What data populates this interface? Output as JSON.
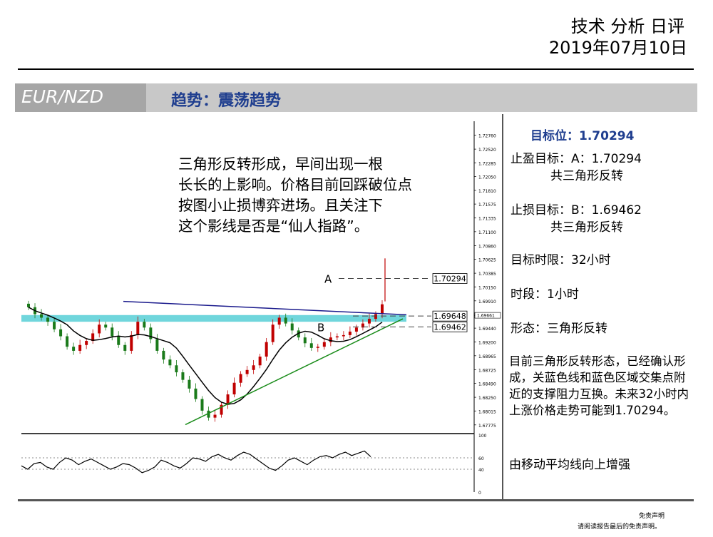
{
  "header": {
    "title": "技术 分析 日评",
    "date": "2019年07月10日"
  },
  "banner": {
    "pair": "EUR/NZD",
    "trend": "趋势：震荡趋势"
  },
  "annotation_text": [
    "三角形反转形成，早间出现一根",
    "长长的上影响。价格目前回踩破位点",
    "按图小止损博弈进场。且关注下",
    "这个影线是否是“仙人指路”。"
  ],
  "right_panel": {
    "target": "目标位：1.70294",
    "take_profit": "止盈目标：A：1.70294",
    "take_profit_note": "共三角形反转",
    "stop_loss": "止损目标：B：1.69462",
    "stop_loss_note": "共三角形反转",
    "time_limit": "目标时限：32小时",
    "timeframe": "时段：1小时",
    "pattern": "形态：三角形反转",
    "description": "目前三角形反转形态，已经确认形成，关蓝色线和蓝色区域交集点附近的支撑阻力互换。未来32小时内上涨价格走势可能到1.70294。",
    "ma_note": "由移动平均线向上增强"
  },
  "disclaimer": {
    "line1": "免责声明",
    "line2": "请阅读报告最后的免责声明。"
  },
  "colors": {
    "up_candle": "#c00000",
    "down_candle": "#1a7a1a",
    "trendline_upper": "#1a1a8c",
    "trendline_lower": "#1a8c1a",
    "zone": "#40c8d0",
    "ma": "#000000"
  },
  "chart_data": {
    "type": "candlestick",
    "ylim": [
      1.6765,
      1.73
    ],
    "price_ticks": [
      "1.72760",
      "1.72520",
      "1.72285",
      "1.72050",
      "1.71810",
      "1.71575",
      "1.71335",
      "1.71100",
      "1.70860",
      "1.70625",
      "1.70385",
      "1.70150",
      "1.69910",
      "1.69661",
      "1.69440",
      "1.69200",
      "1.68965",
      "1.68725",
      "1.68490",
      "1.68250",
      "1.68015",
      "1.67775"
    ],
    "current_price": "1.69661",
    "levels": [
      {
        "label": "A",
        "value": "1.70294"
      },
      {
        "label": "",
        "value": "1.69648"
      },
      {
        "label": "B",
        "value": "1.69462"
      }
    ],
    "close_path": [
      1.698,
      1.6968,
      1.6962,
      1.6955,
      1.6942,
      1.693,
      1.6912,
      1.6905,
      1.6915,
      1.6922,
      1.6935,
      1.695,
      1.6945,
      1.693,
      1.6915,
      1.6905,
      1.6932,
      1.6955,
      1.6945,
      1.6925,
      1.6905,
      1.689,
      1.688,
      1.6868,
      1.6855,
      1.684,
      1.6822,
      1.6802,
      1.679,
      1.6795,
      1.6812,
      1.683,
      1.685,
      1.6865,
      1.6872,
      1.688,
      1.6895,
      1.692,
      1.695,
      1.6962,
      1.6952,
      1.694,
      1.6928,
      1.6918,
      1.691,
      1.6912,
      1.692,
      1.6928,
      1.693,
      1.6932,
      1.6938,
      1.6945,
      1.6952,
      1.696,
      1.6968,
      1.6985
    ],
    "oscillator": {
      "ylim": [
        0,
        100
      ],
      "ticks": [
        "100",
        "60",
        "40",
        "0"
      ],
      "values": [
        46,
        40,
        50,
        52,
        44,
        40,
        52,
        60,
        56,
        48,
        54,
        58,
        52,
        46,
        40,
        44,
        50,
        48,
        42,
        34,
        38,
        44,
        56,
        52,
        46,
        42,
        50,
        60,
        58,
        54,
        62,
        66,
        60,
        56,
        64,
        70,
        66,
        58,
        50,
        42,
        38,
        46,
        56,
        60,
        54,
        48,
        56,
        62,
        64,
        60,
        66,
        70,
        64,
        68,
        72,
        62
      ]
    }
  }
}
